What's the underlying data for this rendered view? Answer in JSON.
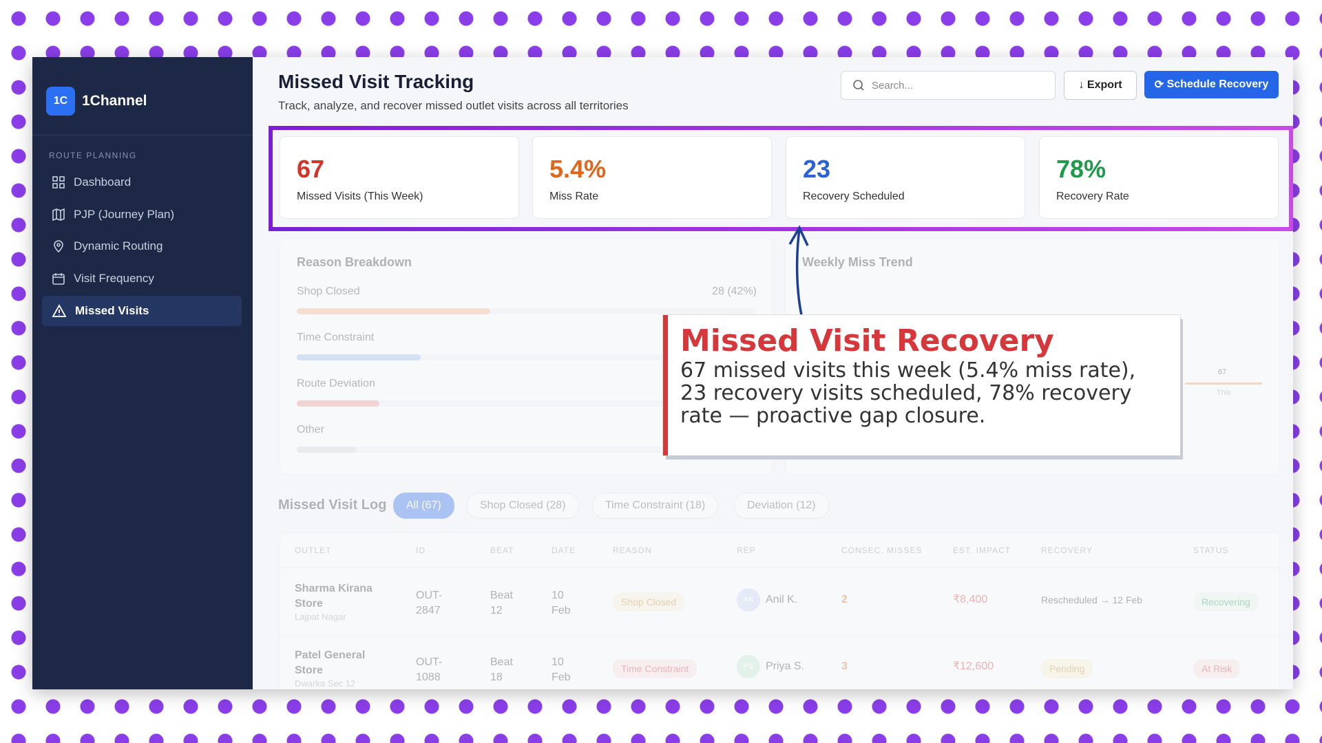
{
  "sidebar": {
    "logo": "1C",
    "brand": "1Channel",
    "section": "ROUTE PLANNING",
    "nav": [
      "Dashboard",
      "PJP (Journey Plan)",
      "Dynamic Routing",
      "Visit Frequency",
      "Missed Visits"
    ]
  },
  "header": {
    "title": "Missed Visit Tracking",
    "subtitle": "Track, analyze, and recover missed outlet visits across all territories",
    "search_placeholder": "Search...",
    "export": "Export",
    "schedule": "Schedule Recovery"
  },
  "kpis": [
    {
      "value": "67",
      "label": "Missed Visits (This Week)"
    },
    {
      "value": "5.4%",
      "label": "Miss Rate"
    },
    {
      "value": "23",
      "label": "Recovery Scheduled"
    },
    {
      "value": "78%",
      "label": "Recovery Rate"
    }
  ],
  "reason_breakdown": {
    "title": "Reason Breakdown",
    "items": [
      {
        "label": "Shop Closed",
        "value": "28 (42%)",
        "share": 42
      },
      {
        "label": "Time Constraint",
        "share": 27
      },
      {
        "label": "Route Deviation",
        "share": 18
      },
      {
        "label": "Other",
        "share": 13
      }
    ]
  },
  "weekly_trend": {
    "title": "Weekly Miss Trend",
    "last_value": "67",
    "last_label": "This"
  },
  "log": {
    "title": "Missed Visit Log",
    "filters": [
      "All (67)",
      "Shop Closed (28)",
      "Time Constraint (18)",
      "Deviation (12)"
    ],
    "columns": [
      "OUTLET",
      "ID",
      "BEAT",
      "DATE",
      "REASON",
      "REP",
      "CONSEC. MISSES",
      "EST. IMPACT",
      "RECOVERY",
      "STATUS"
    ],
    "rows": [
      {
        "outlet": "Sharma Kirana Store",
        "area": "Lajpat Nagar",
        "id": "OUT-2847",
        "beat": "Beat 12",
        "date": "10 Feb",
        "reason": "Shop Closed",
        "initials": "AK",
        "rep": "Anil K.",
        "misses": "2",
        "impact": "₹8,400",
        "recovery": "Rescheduled → 12 Feb",
        "status": "Recovering"
      },
      {
        "outlet": "Patel General Store",
        "area": "Dwarka Sec 12",
        "id": "OUT-1088",
        "beat": "Beat 18",
        "date": "10 Feb",
        "reason": "Time Constraint",
        "initials": "PS",
        "rep": "Priya S.",
        "misses": "3",
        "impact": "₹12,600",
        "recovery": "Pending",
        "status": "At Risk"
      }
    ]
  },
  "callout": {
    "title": "Missed Visit Recovery",
    "body": "67 missed visits this week (5.4% miss rate), 23 recovery visits scheduled, 78% recovery rate — proactive gap closure."
  }
}
